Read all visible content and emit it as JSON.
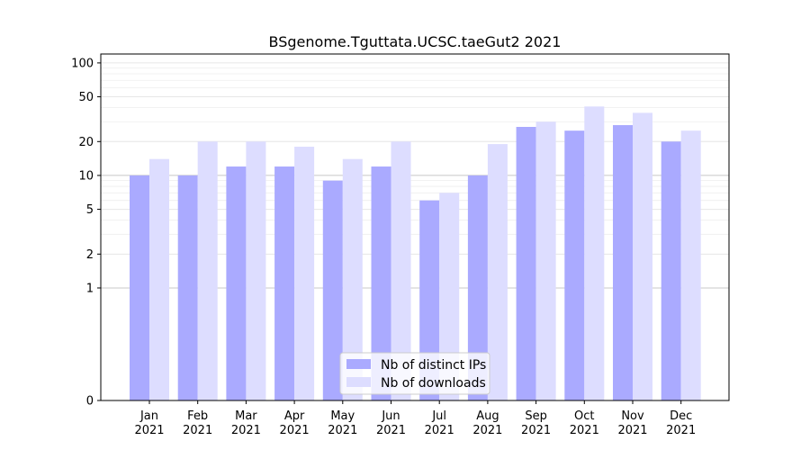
{
  "chart_data": {
    "type": "bar",
    "title": "BSgenome.Tguttata.UCSC.taeGut2 2021",
    "xlabel": "",
    "ylabel": "",
    "yscale": "symlog",
    "ylim": [
      0,
      120
    ],
    "yticks": [
      0,
      1,
      2,
      5,
      10,
      20,
      50,
      100
    ],
    "categories": [
      "Jan\n2021",
      "Feb\n2021",
      "Mar\n2021",
      "Apr\n2021",
      "May\n2021",
      "Jun\n2021",
      "Jul\n2021",
      "Aug\n2021",
      "Sep\n2021",
      "Oct\n2021",
      "Nov\n2021",
      "Dec\n2021"
    ],
    "category_lines": [
      [
        "Jan",
        "2021"
      ],
      [
        "Feb",
        "2021"
      ],
      [
        "Mar",
        "2021"
      ],
      [
        "Apr",
        "2021"
      ],
      [
        "May",
        "2021"
      ],
      [
        "Jun",
        "2021"
      ],
      [
        "Jul",
        "2021"
      ],
      [
        "Aug",
        "2021"
      ],
      [
        "Sep",
        "2021"
      ],
      [
        "Oct",
        "2021"
      ],
      [
        "Nov",
        "2021"
      ],
      [
        "Dec",
        "2021"
      ]
    ],
    "series": [
      {
        "name": "Nb of distinct IPs",
        "color": "#aaaaff",
        "values": [
          10,
          10,
          12,
          12,
          9,
          12,
          6,
          10,
          27,
          25,
          28,
          20
        ]
      },
      {
        "name": "Nb of downloads",
        "color": "#ddddff",
        "values": [
          14,
          20,
          20,
          18,
          14,
          20,
          7,
          19,
          30,
          41,
          36,
          25
        ]
      }
    ],
    "legend": {
      "position": "bottom-center"
    },
    "grid": true
  }
}
